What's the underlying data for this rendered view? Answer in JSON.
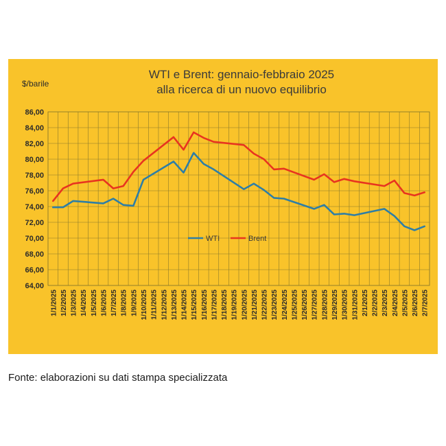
{
  "chart_data": {
    "type": "line",
    "title": [
      "WTI e Brent: gennaio-febbraio 2025",
      "alla ricerca di un nuovo equilibrio"
    ],
    "ylabel": "$/barile",
    "xlabel": "",
    "ylim": [
      64,
      86
    ],
    "yticks": [
      "86,00",
      "84,00",
      "82,00",
      "80,00",
      "78,00",
      "76,00",
      "74,00",
      "72,00",
      "70,00",
      "68,00",
      "66,00",
      "64,00"
    ],
    "grid": true,
    "legend_position": "center",
    "categories": [
      "1/1/2025",
      "1/2/2025",
      "1/3/2025",
      "1/4/2025",
      "1/5/2025",
      "1/6/2025",
      "1/7/2025",
      "1/8/2025",
      "1/9/2025",
      "1/10/2025",
      "1/11/2025",
      "1/12/2025",
      "1/13/2025",
      "1/14/2025",
      "1/15/2025",
      "1/16/2025",
      "1/17/2025",
      "1/18/2025",
      "1/19/2025",
      "1/20/2025",
      "1/21/2025",
      "1/22/2025",
      "1/23/2025",
      "1/24/2025",
      "1/25/2025",
      "1/26/2025",
      "1/27/2025",
      "1/28/2025",
      "1/29/2025",
      "1/30/2025",
      "1/31/2025",
      "2/1/2025",
      "2/2/2025",
      "2/3/2025",
      "2/4/2025",
      "2/5/2025",
      "2/6/2025",
      "2/7/2025"
    ],
    "series": [
      {
        "name": "WTI",
        "color": "#2e7ea6",
        "points": [
          [
            "1/1/2025",
            73.9
          ],
          [
            "1/2/2025",
            73.9
          ],
          [
            "1/3/2025",
            74.7
          ],
          [
            "1/6/2025",
            74.4
          ],
          [
            "1/7/2025",
            75.0
          ],
          [
            "1/8/2025",
            74.2
          ],
          [
            "1/9/2025",
            74.1
          ],
          [
            "1/10/2025",
            77.4
          ],
          [
            "1/13/2025",
            79.7
          ],
          [
            "1/14/2025",
            78.3
          ],
          [
            "1/15/2025",
            80.8
          ],
          [
            "1/16/2025",
            79.4
          ],
          [
            "1/17/2025",
            78.7
          ],
          [
            "1/20/2025",
            76.2
          ],
          [
            "1/21/2025",
            76.9
          ],
          [
            "1/22/2025",
            76.1
          ],
          [
            "1/23/2025",
            75.1
          ],
          [
            "1/24/2025",
            75.0
          ],
          [
            "1/27/2025",
            73.7
          ],
          [
            "1/28/2025",
            74.2
          ],
          [
            "1/29/2025",
            73.0
          ],
          [
            "1/30/2025",
            73.1
          ],
          [
            "1/31/2025",
            72.9
          ],
          [
            "2/3/2025",
            73.7
          ],
          [
            "2/4/2025",
            72.8
          ],
          [
            "2/5/2025",
            71.5
          ],
          [
            "2/6/2025",
            71.0
          ],
          [
            "2/7/2025",
            71.5
          ]
        ]
      },
      {
        "name": "Brent",
        "color": "#e8341f",
        "points": [
          [
            "1/1/2025",
            74.7
          ],
          [
            "1/2/2025",
            76.3
          ],
          [
            "1/3/2025",
            76.9
          ],
          [
            "1/6/2025",
            77.4
          ],
          [
            "1/7/2025",
            76.3
          ],
          [
            "1/8/2025",
            76.6
          ],
          [
            "1/9/2025",
            78.4
          ],
          [
            "1/10/2025",
            79.8
          ],
          [
            "1/13/2025",
            82.8
          ],
          [
            "1/14/2025",
            81.2
          ],
          [
            "1/15/2025",
            83.4
          ],
          [
            "1/16/2025",
            82.7
          ],
          [
            "1/17/2025",
            82.2
          ],
          [
            "1/20/2025",
            81.8
          ],
          [
            "1/21/2025",
            80.7
          ],
          [
            "1/22/2025",
            80.0
          ],
          [
            "1/23/2025",
            78.7
          ],
          [
            "1/24/2025",
            78.8
          ],
          [
            "1/27/2025",
            77.4
          ],
          [
            "1/28/2025",
            78.1
          ],
          [
            "1/29/2025",
            77.1
          ],
          [
            "1/30/2025",
            77.5
          ],
          [
            "1/31/2025",
            77.2
          ],
          [
            "2/3/2025",
            76.6
          ],
          [
            "2/4/2025",
            77.3
          ],
          [
            "2/5/2025",
            75.7
          ],
          [
            "2/6/2025",
            75.4
          ],
          [
            "2/7/2025",
            75.8
          ]
        ]
      }
    ],
    "panel_color": "#f9c32a",
    "grid_color": "#8a7a2a"
  },
  "source": "Fonte: elaborazioni su dati stampa specializzata"
}
